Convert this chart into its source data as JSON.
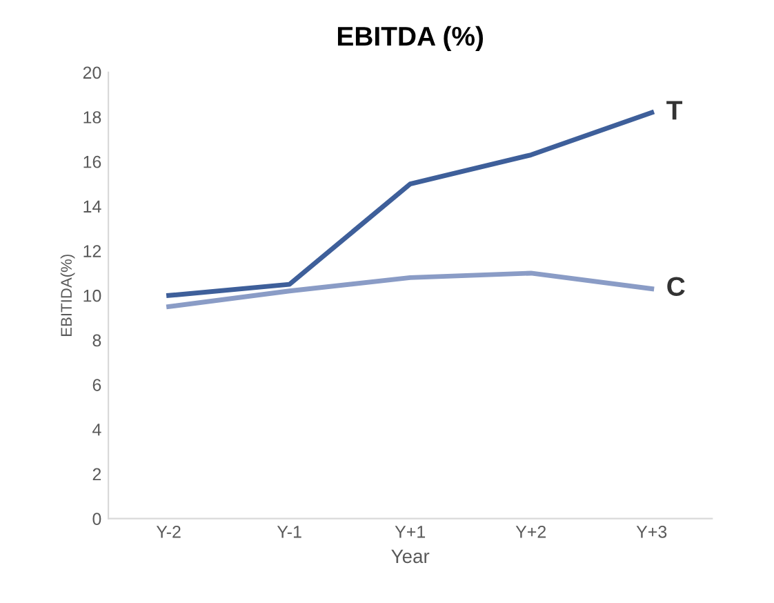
{
  "chart_data": {
    "type": "line",
    "title": "EBITDA (%)",
    "xlabel": "Year",
    "ylabel": "EBITIDA(%)",
    "categories": [
      "Y-2",
      "Y-1",
      "Y+1",
      "Y+2",
      "Y+3"
    ],
    "series": [
      {
        "name": "T",
        "color": "#3e5f9a",
        "values": [
          10.0,
          10.5,
          15.0,
          16.3,
          18.2
        ]
      },
      {
        "name": "C",
        "color": "#8a9cc6",
        "values": [
          9.5,
          10.2,
          10.8,
          11.0,
          10.3
        ]
      }
    ],
    "ylim": [
      0,
      20
    ],
    "yticks": [
      0,
      2,
      4,
      6,
      8,
      10,
      12,
      14,
      16,
      18,
      20
    ],
    "grid": false,
    "legend": false,
    "marker": "none",
    "line_style": "solid"
  }
}
